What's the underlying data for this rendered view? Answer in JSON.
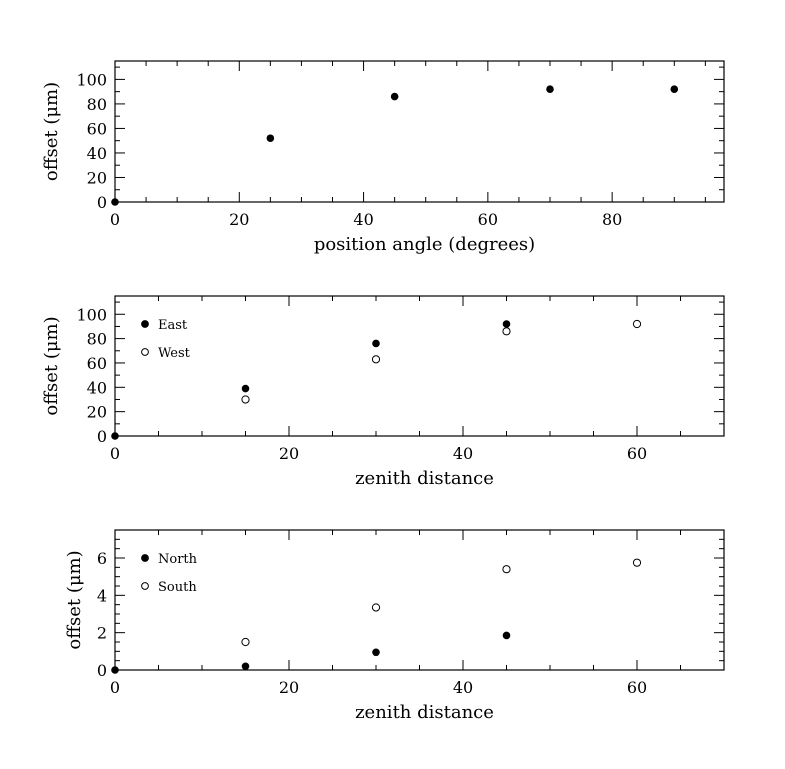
{
  "chart_data": [
    {
      "type": "scatter",
      "xlabel": "position angle (degrees)",
      "ylabel": "offset (μm)",
      "xlim": [
        0,
        98
      ],
      "ylim": [
        0,
        115
      ],
      "xticks": [
        0,
        20,
        40,
        60,
        80
      ],
      "yticks": [
        0,
        20,
        40,
        60,
        80,
        100
      ],
      "x_minor_step": 5,
      "y_minor_step": 10,
      "legend": "none",
      "series": [
        {
          "marker": "filled",
          "x": [
            0,
            25,
            45,
            70,
            90
          ],
          "y": [
            0,
            52,
            86,
            92,
            92
          ]
        }
      ]
    },
    {
      "type": "scatter",
      "xlabel": "zenith distance",
      "ylabel": "offset (μm)",
      "xlim": [
        0,
        70
      ],
      "ylim": [
        0,
        115
      ],
      "xticks": [
        0,
        20,
        40,
        60
      ],
      "yticks": [
        0,
        20,
        40,
        60,
        80,
        100
      ],
      "x_minor_step": 5,
      "y_minor_step": 10,
      "legend": "top-left",
      "series": [
        {
          "name": "East",
          "marker": "filled",
          "x": [
            0,
            15,
            30,
            45,
            60
          ],
          "y": [
            0,
            39,
            76,
            92,
            92
          ]
        },
        {
          "name": "West",
          "marker": "open",
          "x": [
            15,
            30,
            45,
            60
          ],
          "y": [
            30,
            63,
            86,
            92
          ]
        }
      ]
    },
    {
      "type": "scatter",
      "xlabel": "zenith distance",
      "ylabel": "offset (μm)",
      "xlim": [
        0,
        70
      ],
      "ylim": [
        0,
        7.5
      ],
      "xticks": [
        0,
        20,
        40,
        60
      ],
      "yticks": [
        0,
        2,
        4,
        6
      ],
      "x_minor_step": 5,
      "y_minor_step": 0.5,
      "legend": "top-left",
      "series": [
        {
          "name": "North",
          "marker": "filled",
          "x": [
            0,
            15,
            30,
            45
          ],
          "y": [
            0,
            0.2,
            0.95,
            1.85
          ]
        },
        {
          "name": "South",
          "marker": "open",
          "x": [
            15,
            30,
            45,
            60
          ],
          "y": [
            1.5,
            3.35,
            5.4,
            5.75
          ]
        }
      ]
    }
  ]
}
